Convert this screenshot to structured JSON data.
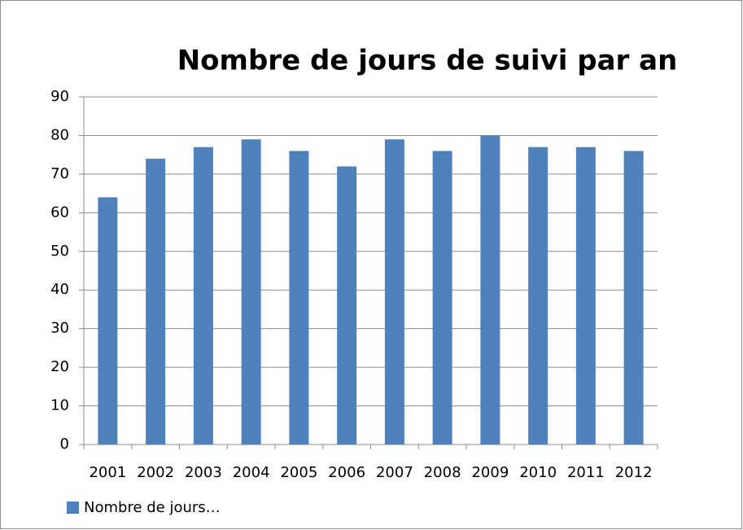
{
  "chart_data": {
    "type": "bar",
    "title": "Nombre de jours de suivi par an",
    "categories": [
      "2001",
      "2002",
      "2003",
      "2004",
      "2005",
      "2006",
      "2007",
      "2008",
      "2009",
      "2010",
      "2011",
      "2012"
    ],
    "series": [
      {
        "name": "Nombre de jours…",
        "color": "#4f81bd",
        "values": [
          64,
          74,
          77,
          79,
          76,
          72,
          79,
          76,
          80,
          77,
          77,
          76
        ]
      }
    ],
    "ylim": [
      0,
      90
    ],
    "yticks": [
      0,
      10,
      20,
      30,
      40,
      50,
      60,
      70,
      80,
      90
    ],
    "grid": true,
    "legend": "bottom-left"
  }
}
